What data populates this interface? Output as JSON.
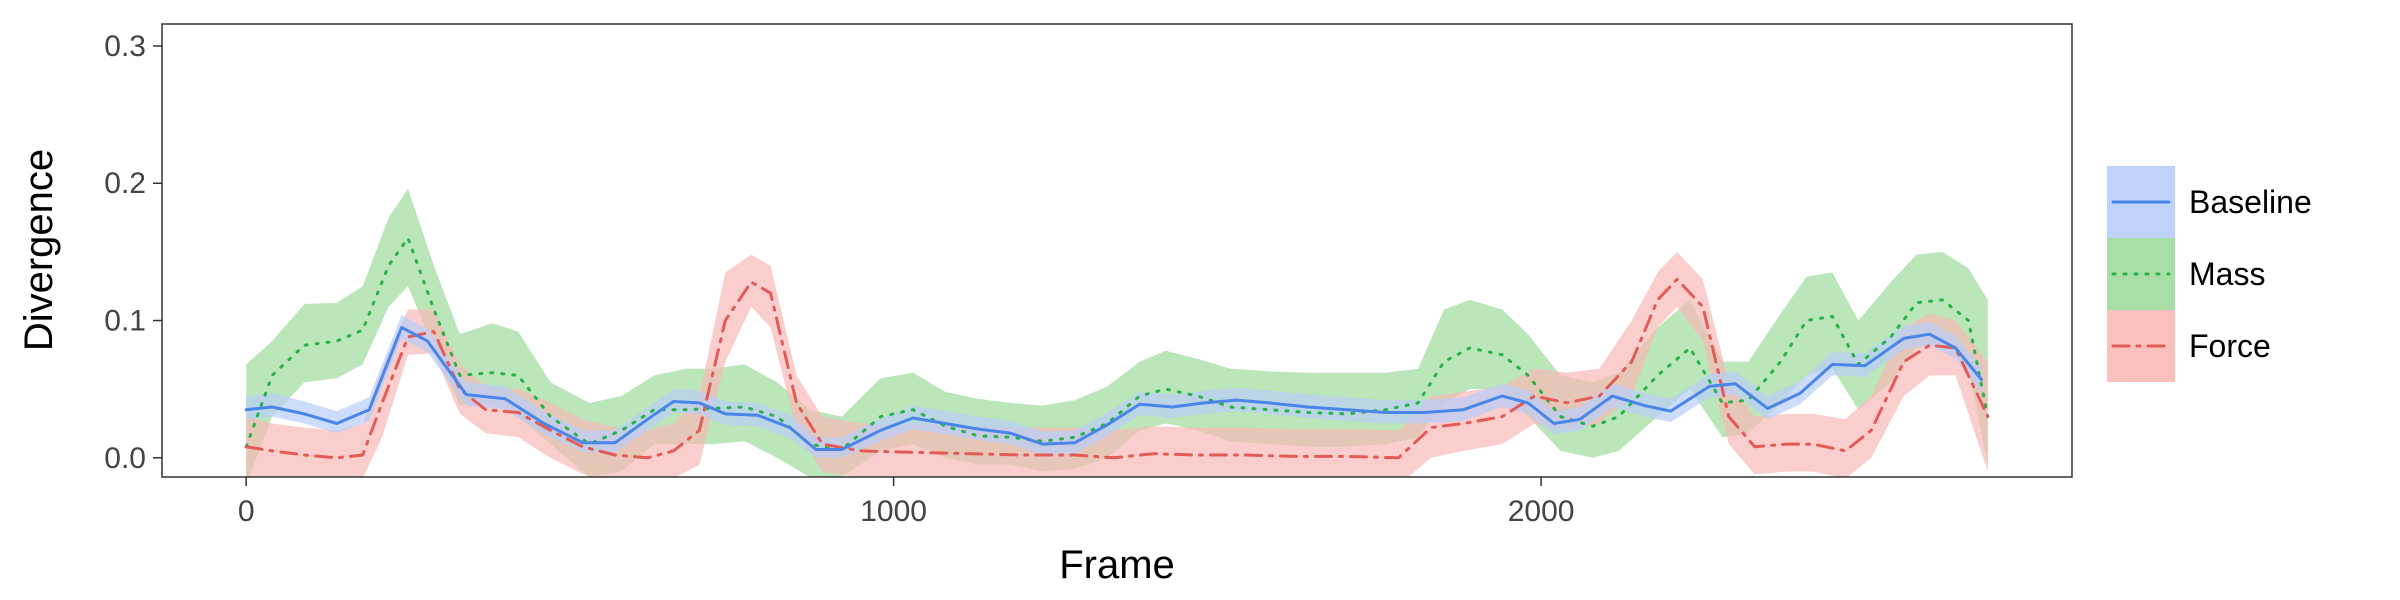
{
  "chart_data": {
    "type": "line",
    "xlabel": "Frame",
    "ylabel": "Divergence",
    "xlim": [
      -130,
      2820
    ],
    "ylim": [
      -0.014,
      0.316
    ],
    "xticks": [
      0,
      1000,
      2000
    ],
    "yticks": [
      0.0,
      0.1,
      0.2,
      0.3
    ],
    "xtick_labels": [
      "0",
      "1000",
      "2000"
    ],
    "ytick_labels": [
      "0.0",
      "0.1",
      "0.2",
      "0.3"
    ],
    "grid": false,
    "legend_position": "right",
    "series": [
      {
        "name": "Baseline",
        "color": "#4a86e8",
        "fill": "#b8cdfa",
        "linestyle": "solid",
        "points": [
          [
            0,
            0.035,
            0.028,
            0.045
          ],
          [
            40,
            0.037,
            0.03,
            0.047
          ],
          [
            90,
            0.032,
            0.025,
            0.041
          ],
          [
            140,
            0.025,
            0.018,
            0.034
          ],
          [
            190,
            0.035,
            0.027,
            0.044
          ],
          [
            240,
            0.095,
            0.087,
            0.104
          ],
          [
            280,
            0.085,
            0.077,
            0.094
          ],
          [
            340,
            0.046,
            0.038,
            0.055
          ],
          [
            400,
            0.043,
            0.035,
            0.052
          ],
          [
            460,
            0.025,
            0.017,
            0.034
          ],
          [
            520,
            0.011,
            0.004,
            0.02
          ],
          [
            570,
            0.011,
            0.004,
            0.02
          ],
          [
            620,
            0.028,
            0.02,
            0.037
          ],
          [
            660,
            0.041,
            0.033,
            0.05
          ],
          [
            700,
            0.04,
            0.032,
            0.049
          ],
          [
            740,
            0.032,
            0.024,
            0.041
          ],
          [
            790,
            0.031,
            0.023,
            0.04
          ],
          [
            840,
            0.022,
            0.014,
            0.031
          ],
          [
            880,
            0.006,
            0.0,
            0.015
          ],
          [
            920,
            0.006,
            0.0,
            0.015
          ],
          [
            980,
            0.02,
            0.012,
            0.029
          ],
          [
            1030,
            0.029,
            0.021,
            0.038
          ],
          [
            1080,
            0.025,
            0.017,
            0.034
          ],
          [
            1130,
            0.021,
            0.013,
            0.03
          ],
          [
            1180,
            0.018,
            0.01,
            0.027
          ],
          [
            1230,
            0.01,
            0.002,
            0.019
          ],
          [
            1280,
            0.011,
            0.003,
            0.02
          ],
          [
            1330,
            0.024,
            0.016,
            0.033
          ],
          [
            1380,
            0.039,
            0.031,
            0.048
          ],
          [
            1430,
            0.037,
            0.029,
            0.046
          ],
          [
            1480,
            0.04,
            0.032,
            0.049
          ],
          [
            1530,
            0.042,
            0.034,
            0.051
          ],
          [
            1580,
            0.04,
            0.032,
            0.049
          ],
          [
            1640,
            0.037,
            0.029,
            0.046
          ],
          [
            1700,
            0.035,
            0.027,
            0.044
          ],
          [
            1760,
            0.033,
            0.025,
            0.042
          ],
          [
            1820,
            0.033,
            0.025,
            0.042
          ],
          [
            1880,
            0.035,
            0.027,
            0.044
          ],
          [
            1940,
            0.045,
            0.037,
            0.054
          ],
          [
            1980,
            0.04,
            0.032,
            0.049
          ],
          [
            2020,
            0.025,
            0.017,
            0.034
          ],
          [
            2060,
            0.028,
            0.02,
            0.037
          ],
          [
            2110,
            0.045,
            0.037,
            0.054
          ],
          [
            2160,
            0.038,
            0.03,
            0.047
          ],
          [
            2200,
            0.034,
            0.026,
            0.043
          ],
          [
            2260,
            0.052,
            0.044,
            0.061
          ],
          [
            2300,
            0.054,
            0.046,
            0.063
          ],
          [
            2350,
            0.036,
            0.028,
            0.045
          ],
          [
            2400,
            0.047,
            0.039,
            0.056
          ],
          [
            2450,
            0.068,
            0.06,
            0.077
          ],
          [
            2500,
            0.067,
            0.059,
            0.076
          ],
          [
            2560,
            0.087,
            0.079,
            0.096
          ],
          [
            2600,
            0.09,
            0.082,
            0.099
          ],
          [
            2640,
            0.08,
            0.072,
            0.089
          ],
          [
            2680,
            0.057,
            0.048,
            0.066
          ]
        ]
      },
      {
        "name": "Mass",
        "color": "#2ab24a",
        "fill": "#9edb9c",
        "linestyle": "dotted",
        "points": [
          [
            0,
            0.008,
            -0.02,
            0.068
          ],
          [
            40,
            0.06,
            0.03,
            0.085
          ],
          [
            90,
            0.082,
            0.055,
            0.112
          ],
          [
            140,
            0.085,
            0.058,
            0.113
          ],
          [
            180,
            0.093,
            0.068,
            0.125
          ],
          [
            220,
            0.14,
            0.11,
            0.175
          ],
          [
            250,
            0.16,
            0.125,
            0.196
          ],
          [
            290,
            0.108,
            0.08,
            0.14
          ],
          [
            330,
            0.06,
            0.038,
            0.09
          ],
          [
            380,
            0.062,
            0.04,
            0.098
          ],
          [
            420,
            0.06,
            0.03,
            0.092
          ],
          [
            470,
            0.03,
            0.01,
            0.055
          ],
          [
            530,
            0.01,
            -0.014,
            0.04
          ],
          [
            580,
            0.02,
            -0.01,
            0.045
          ],
          [
            630,
            0.035,
            0.01,
            0.06
          ],
          [
            680,
            0.035,
            0.01,
            0.065
          ],
          [
            720,
            0.036,
            0.01,
            0.065
          ],
          [
            770,
            0.037,
            0.012,
            0.068
          ],
          [
            820,
            0.03,
            0.0,
            0.055
          ],
          [
            870,
            0.01,
            -0.014,
            0.035
          ],
          [
            920,
            0.006,
            -0.014,
            0.03
          ],
          [
            980,
            0.03,
            0.005,
            0.058
          ],
          [
            1030,
            0.035,
            0.01,
            0.062
          ],
          [
            1080,
            0.023,
            0.0,
            0.048
          ],
          [
            1130,
            0.016,
            -0.005,
            0.043
          ],
          [
            1180,
            0.015,
            -0.005,
            0.04
          ],
          [
            1230,
            0.012,
            -0.01,
            0.038
          ],
          [
            1280,
            0.015,
            -0.008,
            0.042
          ],
          [
            1330,
            0.025,
            0.0,
            0.052
          ],
          [
            1380,
            0.045,
            0.02,
            0.07
          ],
          [
            1420,
            0.05,
            0.025,
            0.078
          ],
          [
            1470,
            0.045,
            0.02,
            0.072
          ],
          [
            1520,
            0.037,
            0.012,
            0.065
          ],
          [
            1580,
            0.035,
            0.01,
            0.063
          ],
          [
            1640,
            0.033,
            0.008,
            0.062
          ],
          [
            1700,
            0.032,
            0.008,
            0.062
          ],
          [
            1760,
            0.035,
            0.01,
            0.062
          ],
          [
            1810,
            0.04,
            0.015,
            0.065
          ],
          [
            1850,
            0.07,
            0.04,
            0.108
          ],
          [
            1890,
            0.08,
            0.05,
            0.115
          ],
          [
            1940,
            0.075,
            0.05,
            0.108
          ],
          [
            1980,
            0.06,
            0.03,
            0.09
          ],
          [
            2030,
            0.03,
            0.005,
            0.06
          ],
          [
            2080,
            0.023,
            0.0,
            0.055
          ],
          [
            2120,
            0.03,
            0.005,
            0.062
          ],
          [
            2180,
            0.06,
            0.03,
            0.095
          ],
          [
            2230,
            0.08,
            0.05,
            0.115
          ],
          [
            2280,
            0.04,
            0.015,
            0.07
          ],
          [
            2320,
            0.042,
            0.018,
            0.07
          ],
          [
            2370,
            0.07,
            0.04,
            0.105
          ],
          [
            2410,
            0.1,
            0.06,
            0.132
          ],
          [
            2450,
            0.103,
            0.065,
            0.135
          ],
          [
            2490,
            0.068,
            0.035,
            0.1
          ],
          [
            2540,
            0.088,
            0.055,
            0.128
          ],
          [
            2580,
            0.113,
            0.08,
            0.148
          ],
          [
            2620,
            0.115,
            0.085,
            0.15
          ],
          [
            2660,
            0.1,
            0.065,
            0.138
          ],
          [
            2690,
            0.03,
            -0.005,
            0.115
          ]
        ]
      },
      {
        "name": "Force",
        "color": "#e25b57",
        "fill": "#f8b9b6",
        "linestyle": "dashdot",
        "points": [
          [
            0,
            0.008,
            -0.02,
            0.03
          ],
          [
            40,
            0.005,
            -0.015,
            0.025
          ],
          [
            90,
            0.002,
            -0.018,
            0.022
          ],
          [
            140,
            0.0,
            -0.02,
            0.02
          ],
          [
            180,
            0.002,
            -0.015,
            0.025
          ],
          [
            210,
            0.04,
            0.015,
            0.065
          ],
          [
            250,
            0.088,
            0.075,
            0.108
          ],
          [
            290,
            0.092,
            0.076,
            0.108
          ],
          [
            330,
            0.05,
            0.032,
            0.068
          ],
          [
            370,
            0.035,
            0.018,
            0.052
          ],
          [
            420,
            0.033,
            0.015,
            0.05
          ],
          [
            470,
            0.02,
            0.0,
            0.04
          ],
          [
            520,
            0.008,
            -0.012,
            0.028
          ],
          [
            570,
            0.002,
            -0.018,
            0.022
          ],
          [
            620,
            0.0,
            -0.02,
            0.02
          ],
          [
            660,
            0.005,
            -0.015,
            0.025
          ],
          [
            700,
            0.02,
            -0.005,
            0.045
          ],
          [
            740,
            0.1,
            0.07,
            0.135
          ],
          [
            780,
            0.128,
            0.11,
            0.148
          ],
          [
            810,
            0.12,
            0.095,
            0.14
          ],
          [
            850,
            0.04,
            0.02,
            0.06
          ],
          [
            890,
            0.01,
            -0.01,
            0.03
          ],
          [
            950,
            0.005,
            -0.015,
            0.025
          ],
          [
            1030,
            0.004,
            -0.016,
            0.024
          ],
          [
            1120,
            0.003,
            -0.017,
            0.023
          ],
          [
            1200,
            0.002,
            -0.018,
            0.022
          ],
          [
            1280,
            0.002,
            -0.018,
            0.022
          ],
          [
            1340,
            0.0,
            -0.02,
            0.02
          ],
          [
            1400,
            0.003,
            -0.017,
            0.023
          ],
          [
            1470,
            0.002,
            -0.018,
            0.022
          ],
          [
            1540,
            0.002,
            -0.018,
            0.022
          ],
          [
            1620,
            0.001,
            -0.019,
            0.021
          ],
          [
            1700,
            0.001,
            -0.019,
            0.021
          ],
          [
            1780,
            0.0,
            -0.02,
            0.02
          ],
          [
            1830,
            0.022,
            0.0,
            0.045
          ],
          [
            1880,
            0.025,
            0.005,
            0.048
          ],
          [
            1940,
            0.03,
            0.01,
            0.052
          ],
          [
            1990,
            0.045,
            0.025,
            0.065
          ],
          [
            2040,
            0.04,
            0.02,
            0.062
          ],
          [
            2090,
            0.045,
            0.025,
            0.065
          ],
          [
            2140,
            0.07,
            0.045,
            0.1
          ],
          [
            2180,
            0.115,
            0.095,
            0.135
          ],
          [
            2210,
            0.13,
            0.11,
            0.15
          ],
          [
            2250,
            0.11,
            0.085,
            0.13
          ],
          [
            2290,
            0.03,
            0.01,
            0.055
          ],
          [
            2330,
            0.008,
            -0.012,
            0.03
          ],
          [
            2380,
            0.01,
            -0.01,
            0.032
          ],
          [
            2420,
            0.01,
            -0.01,
            0.032
          ],
          [
            2470,
            0.005,
            -0.015,
            0.028
          ],
          [
            2510,
            0.02,
            0.0,
            0.045
          ],
          [
            2560,
            0.07,
            0.045,
            0.095
          ],
          [
            2600,
            0.082,
            0.06,
            0.105
          ],
          [
            2640,
            0.08,
            0.06,
            0.1
          ],
          [
            2690,
            0.03,
            -0.01,
            0.07
          ]
        ]
      }
    ]
  }
}
